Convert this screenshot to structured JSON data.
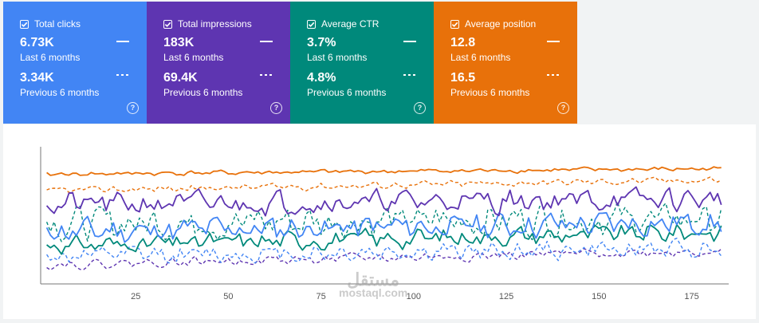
{
  "cards": [
    {
      "title": "Total clicks",
      "current_value": "6.73K",
      "current_period": "Last 6 months",
      "previous_value": "3.34K",
      "previous_period": "Previous 6 months",
      "color": "#4285f4",
      "help": "?"
    },
    {
      "title": "Total impressions",
      "current_value": "183K",
      "current_period": "Last 6 months",
      "previous_value": "69.4K",
      "previous_period": "Previous 6 months",
      "color": "#5e35b1",
      "help": "?"
    },
    {
      "title": "Average CTR",
      "current_value": "3.7%",
      "current_period": "Last 6 months",
      "previous_value": "4.8%",
      "previous_period": "Previous 6 months",
      "color": "#00897b",
      "help": "?"
    },
    {
      "title": "Average position",
      "current_value": "12.8",
      "current_period": "Last 6 months",
      "previous_value": "16.5",
      "previous_period": "Previous 6 months",
      "color": "#e8710a",
      "help": "?"
    }
  ],
  "chart_data": {
    "type": "line",
    "x_range": [
      0,
      185
    ],
    "x_ticks": [
      "25",
      "50",
      "75",
      "100",
      "125",
      "150",
      "175"
    ],
    "y_axis_labels": "none",
    "series": [
      {
        "name": "Total clicks (last 6 months)",
        "style": "solid",
        "color": "#4285f4",
        "base": [
          38,
          45
        ],
        "amp": 11,
        "seed": 11
      },
      {
        "name": "Total clicks (previous 6 months)",
        "style": "dashed",
        "color": "#4285f4",
        "base": [
          20,
          26
        ],
        "amp": 8,
        "seed": 12
      },
      {
        "name": "Total impressions (last 6 months)",
        "style": "solid",
        "color": "#5e35b1",
        "base": [
          58,
          62
        ],
        "amp": 10,
        "seed": 21
      },
      {
        "name": "Total impressions (previous 6 months)",
        "style": "dashed",
        "color": "#5e35b1",
        "base": [
          14,
          24
        ],
        "amp": 4,
        "seed": 22
      },
      {
        "name": "Average CTR (last 6 months)",
        "style": "solid",
        "color": "#00897b",
        "base": [
          28,
          38
        ],
        "amp": 8,
        "seed": 31
      },
      {
        "name": "Average CTR (previous 6 months)",
        "style": "dashed",
        "color": "#00897b",
        "base": [
          44,
          48
        ],
        "amp": 14,
        "seed": 32
      },
      {
        "name": "Average position (last 6 months)",
        "style": "solid",
        "color": "#e8710a",
        "base": [
          80,
          84
        ],
        "amp": 2,
        "seed": 41
      },
      {
        "name": "Average position (previous 6 months)",
        "style": "dashed",
        "color": "#e8710a",
        "base": [
          68,
          76
        ],
        "amp": 3,
        "seed": 42
      }
    ]
  },
  "watermark": {
    "arabic": "مستقل",
    "latin": "mostaql.com"
  }
}
